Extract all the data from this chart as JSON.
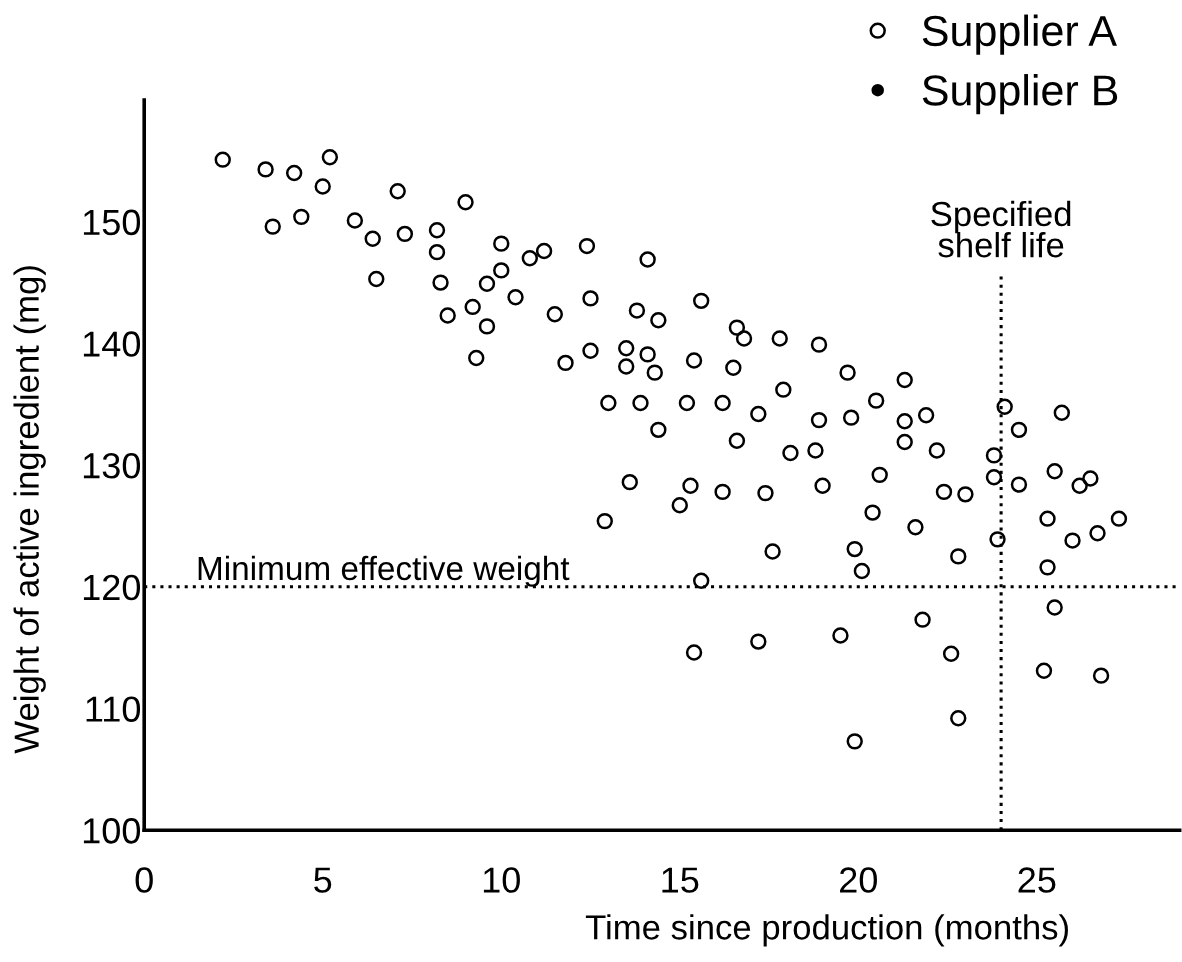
{
  "chart_data": {
    "type": "scatter",
    "xlabel": "Time since production (months)",
    "ylabel": "Weight of active ingredient (mg)",
    "xlim": [
      0,
      29
    ],
    "xticks": [
      0,
      5,
      10,
      15,
      20,
      25
    ],
    "ylim": [
      100,
      160
    ],
    "yticks": [
      100,
      110,
      120,
      130,
      140,
      150
    ],
    "grid": false,
    "legend": "top right",
    "marker": "circle",
    "ref_lines": [
      {
        "axis": "y",
        "value": 120,
        "label": "Minimum effective weight",
        "color": "#000000",
        "line_style": "dotted"
      },
      {
        "axis": "x",
        "value": 24,
        "label": "Specified\nshelf life",
        "color": "#000000",
        "line_style": "dotted"
      }
    ],
    "series": [
      {
        "name": "Supplier A",
        "color": "#000000",
        "x": [
          2.2,
          3.4,
          4.2,
          5.2,
          5.0,
          7.1,
          9.0,
          3.6,
          4.4,
          5.9,
          6.4,
          7.3,
          8.2,
          8.2,
          6.5,
          8.3,
          9.6,
          8.5,
          9.2,
          9.6,
          9.3,
          10.0,
          10.8,
          11.2,
          12.4,
          14.1,
          10.0,
          10.4,
          11.5,
          12.5,
          13.8,
          14.4,
          15.6,
          11.8,
          12.5,
          13.5,
          14.1,
          13.5,
          14.3,
          15.4,
          16.6,
          16.8,
          17.8,
          18.9,
          16.5,
          19.7,
          17.9,
          13.0,
          13.9,
          15.2,
          16.2,
          17.2,
          18.9,
          19.8,
          14.4,
          16.6,
          18.1,
          18.8,
          13.6,
          15.3,
          15.0,
          16.2,
          17.4,
          19.0,
          12.9,
          17.6,
          19.9,
          15.6,
          20.4,
          20.1,
          15.4,
          17.2,
          19.5,
          19.9,
          21.3,
          20.5,
          21.3,
          21.9,
          21.3,
          22.2,
          20.6,
          22.4,
          23.0,
          21.6,
          22.8,
          24.1,
          25.7,
          24.5,
          23.8,
          23.8,
          24.5,
          25.5,
          26.2,
          26.5,
          25.3,
          23.9,
          26.0,
          26.7,
          27.3,
          25.3,
          25.5,
          21.8,
          22.6,
          25.2,
          26.8,
          22.8
        ],
        "values": [
          155.1,
          154.3,
          154.0,
          155.3,
          152.9,
          152.5,
          151.6,
          149.6,
          150.4,
          150.1,
          148.6,
          149.0,
          149.3,
          147.5,
          145.3,
          145.0,
          144.9,
          142.3,
          143.0,
          141.4,
          138.8,
          148.2,
          147.0,
          147.6,
          148.0,
          146.9,
          146.0,
          143.8,
          142.4,
          143.7,
          142.7,
          141.9,
          143.5,
          138.4,
          139.4,
          139.6,
          139.1,
          138.1,
          137.6,
          138.6,
          141.3,
          140.4,
          140.4,
          139.9,
          138.0,
          137.6,
          136.2,
          135.1,
          135.1,
          135.1,
          135.1,
          134.2,
          133.7,
          133.9,
          132.9,
          132.0,
          131.0,
          131.2,
          128.6,
          128.3,
          126.7,
          127.8,
          127.7,
          128.3,
          125.4,
          122.9,
          123.1,
          120.5,
          126.1,
          121.3,
          114.6,
          115.5,
          116.0,
          107.3,
          137.0,
          135.3,
          133.6,
          134.1,
          131.9,
          131.2,
          129.2,
          127.8,
          127.6,
          124.9,
          122.5,
          134.8,
          134.3,
          132.9,
          130.8,
          129.0,
          128.4,
          129.5,
          128.3,
          128.9,
          125.6,
          123.9,
          123.8,
          124.4,
          125.6,
          121.6,
          118.3,
          117.3,
          114.5,
          113.1,
          112.7,
          109.2
        ]
      },
      {
        "name": "Supplier B",
        "color": "#000000"
      }
    ]
  }
}
